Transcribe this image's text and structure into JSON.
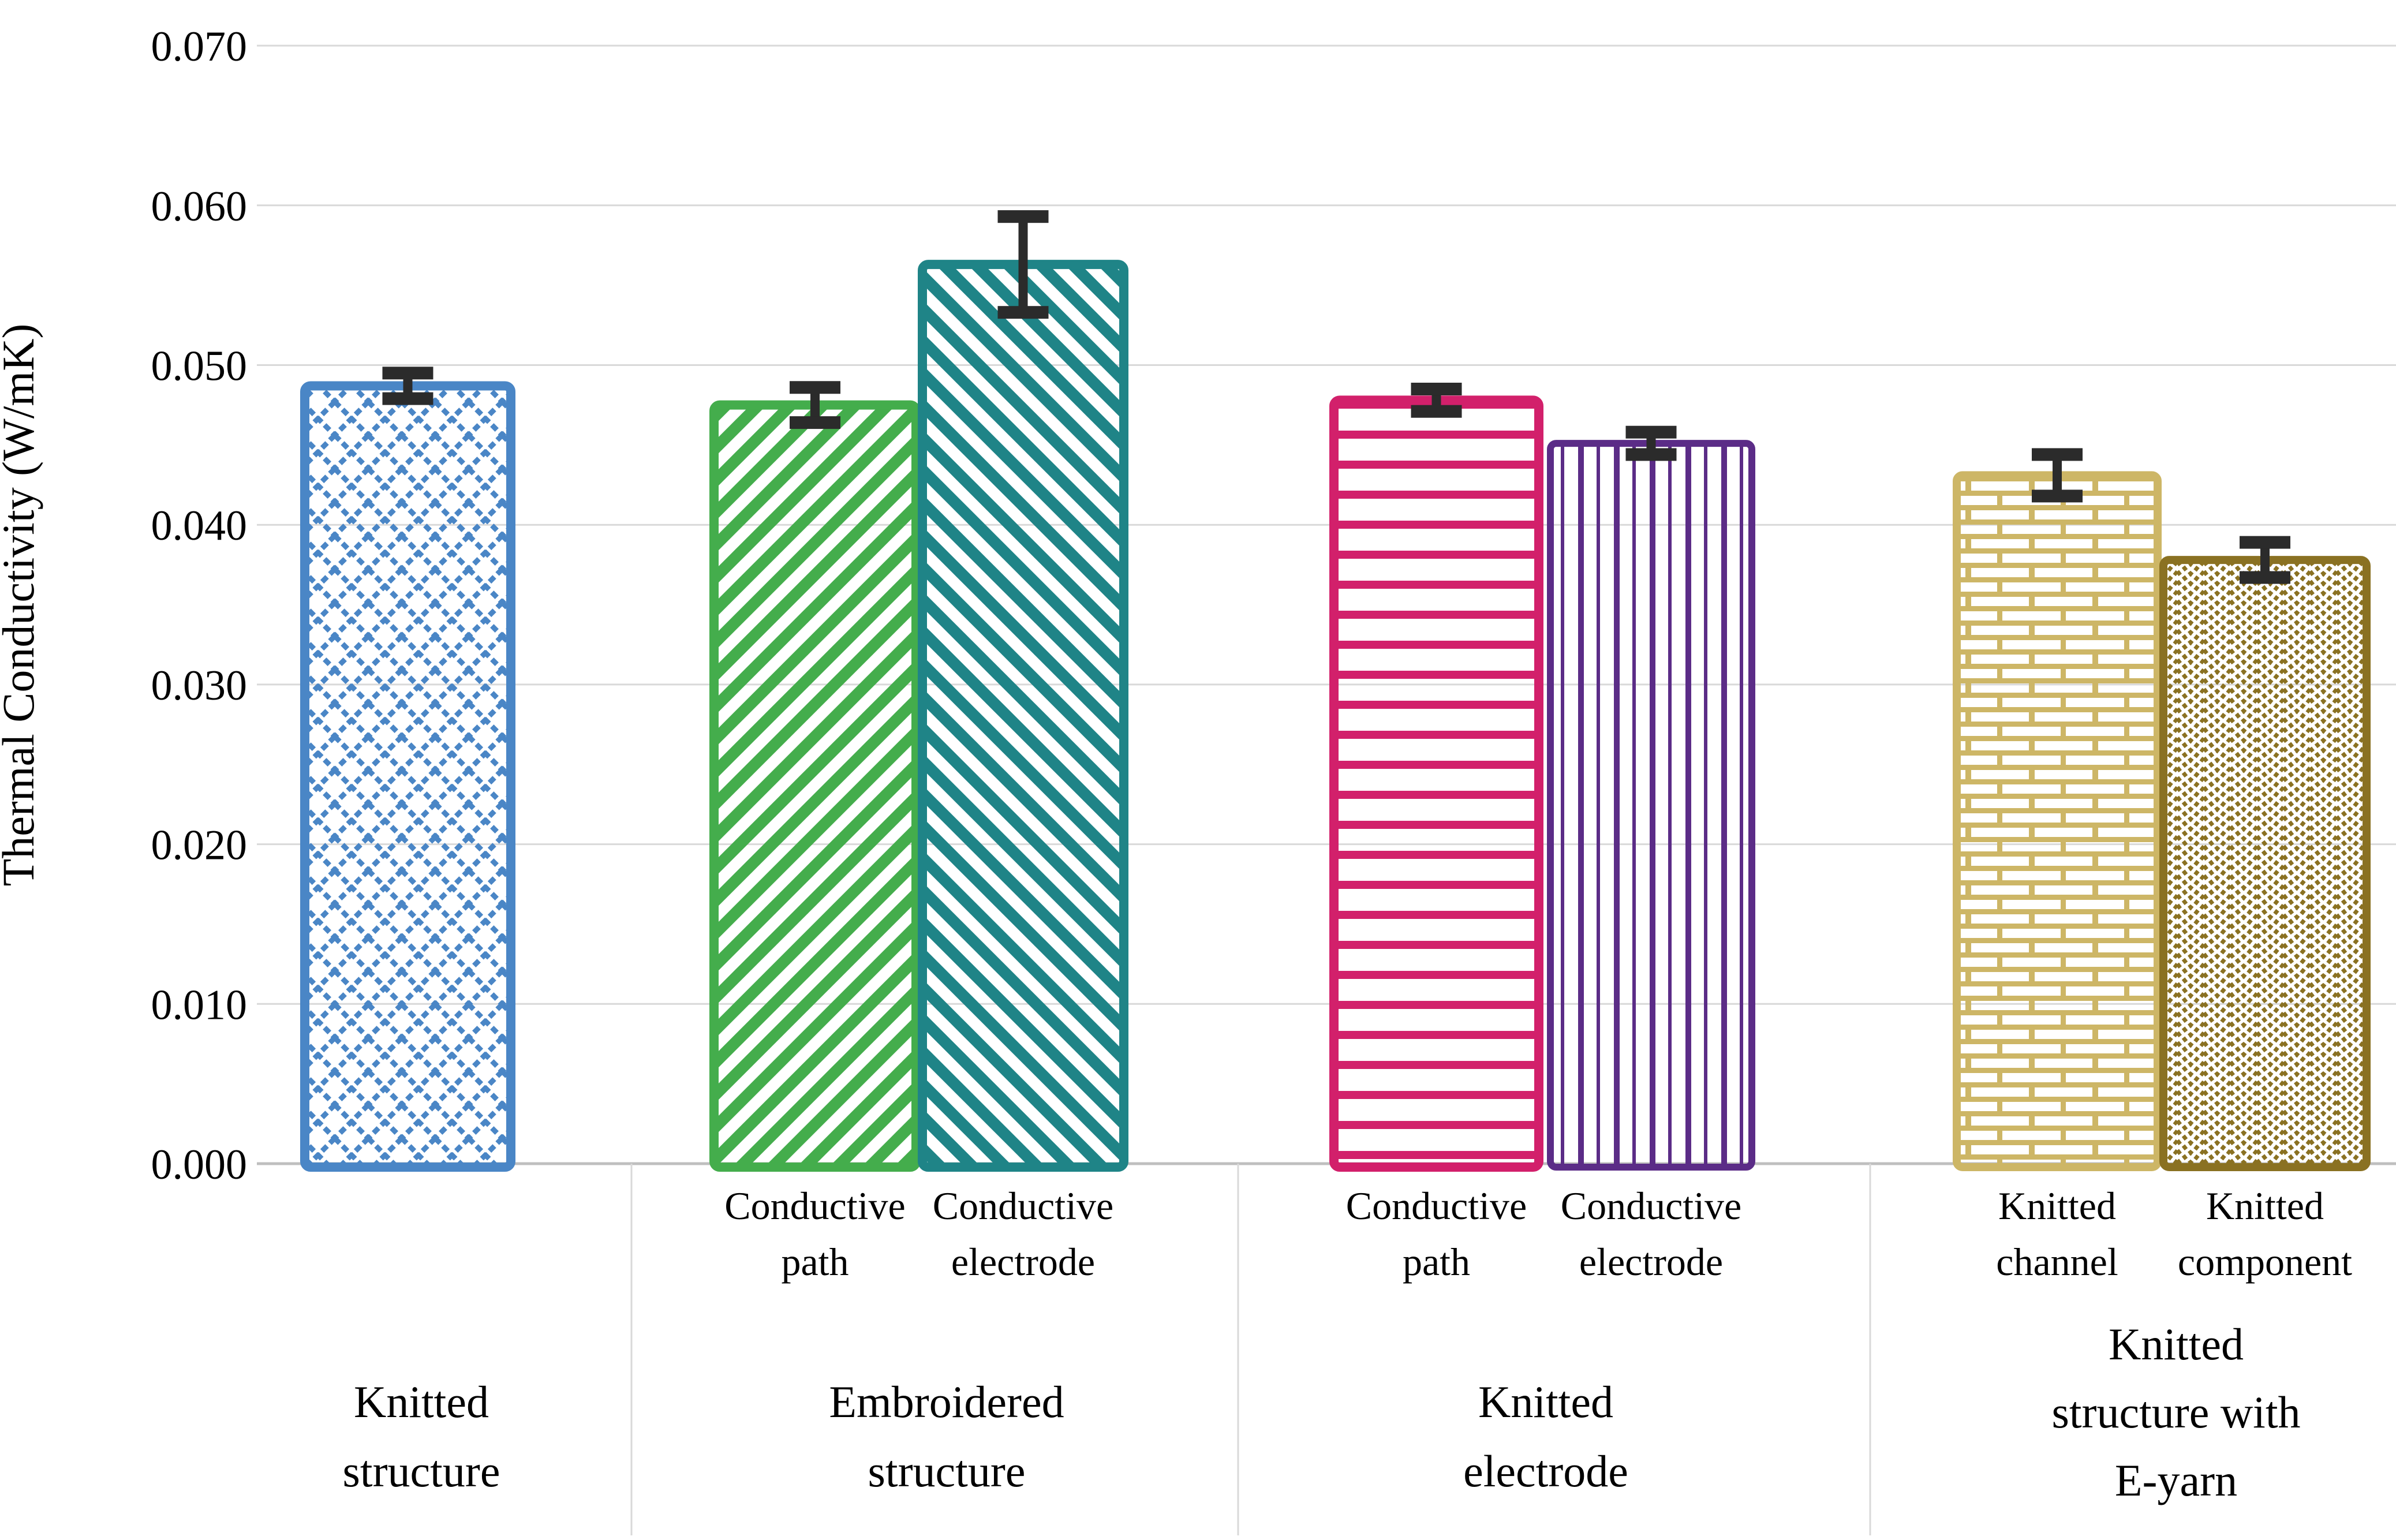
{
  "chart_data": {
    "type": "bar",
    "title": "",
    "ylabel": "Thermal Conductivity  (W/mK)",
    "xlabel": "",
    "ylim": [
      0.0,
      0.07
    ],
    "ytick_step": 0.01,
    "ytick_decimals": 3,
    "grid": true,
    "legend": "none",
    "gridline_color": "#D9D9D9",
    "baseline_color": "#BFBFBF",
    "separator_color": "#D9D9D9",
    "error_bar_color": "#2B2B2B",
    "groups": [
      {
        "label": "Knitted structure",
        "label_lines": [
          "Knitted",
          "structure"
        ],
        "bars": [
          {
            "name": "Knitted structure",
            "sublabel": "",
            "sublabel_lines": [],
            "value": 0.0487,
            "error": 0.0008,
            "color": "#4A86C6",
            "pattern": "diamond-lattice"
          }
        ]
      },
      {
        "label": "Embroidered structure",
        "label_lines": [
          "Embroidered",
          "structure"
        ],
        "bars": [
          {
            "name": "Embroidered structure - Conductive path",
            "sublabel": "Conductive path",
            "sublabel_lines": [
              "Conductive",
              "path"
            ],
            "value": 0.0475,
            "error": 0.0011,
            "color": "#44AD4C",
            "pattern": "diagonal-up"
          },
          {
            "name": "Embroidered structure - Conductive electrode",
            "sublabel": "Conductive electrode",
            "sublabel_lines": [
              "Conductive",
              "electrode"
            ],
            "value": 0.0563,
            "error": 0.003,
            "color": "#1F8487",
            "pattern": "diagonal-down"
          }
        ]
      },
      {
        "label": "Knitted electrode",
        "label_lines": [
          "Knitted",
          "electrode"
        ],
        "bars": [
          {
            "name": "Knitted electrode - Conductive path",
            "sublabel": "Conductive path",
            "sublabel_lines": [
              "Conductive",
              "path"
            ],
            "value": 0.0478,
            "error": 0.0007,
            "color": "#D2206B",
            "pattern": "horizontal-lines"
          },
          {
            "name": "Knitted electrode - Conductive electrode",
            "sublabel": "Conductive electrode",
            "sublabel_lines": [
              "Conductive",
              "electrode"
            ],
            "value": 0.0451,
            "error": 0.0007,
            "color": "#5B2C87",
            "pattern": "vertical-lines"
          }
        ]
      },
      {
        "label": "Knitted structure with E-yarn",
        "label_lines": [
          "Knitted",
          "structure with",
          "E-yarn"
        ],
        "bars": [
          {
            "name": "Knitted channel",
            "sublabel": "Knitted channel",
            "sublabel_lines": [
              "Knitted",
              "channel"
            ],
            "value": 0.0431,
            "error": 0.0013,
            "color": "#CDB666",
            "pattern": "brick"
          },
          {
            "name": "Knitted component",
            "sublabel": "Knitted component",
            "sublabel_lines": [
              "Knitted",
              "component"
            ],
            "value": 0.0378,
            "error": 0.0011,
            "color": "#8A7122",
            "pattern": "zigzag-dots"
          }
        ]
      }
    ]
  }
}
